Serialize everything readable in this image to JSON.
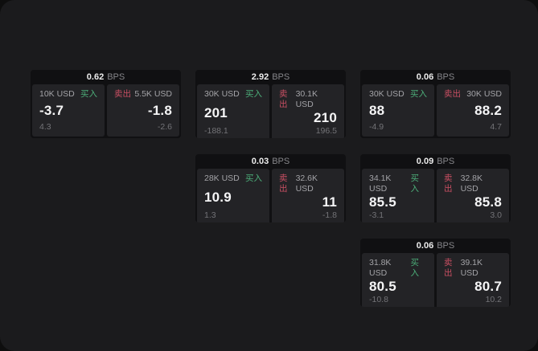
{
  "labels": {
    "bps_unit": "BPS",
    "buy": "买入",
    "sell": "卖出"
  },
  "colors": {
    "buy_green": "#4cae79",
    "sell_red": "#c94f63",
    "page_background": "#1b1b1d",
    "card_background": "#101012",
    "panel_background": "#232326"
  },
  "cards": [
    {
      "row": 1,
      "col": 1,
      "bps": "0.62",
      "buy": {
        "amount": "10K USD",
        "value": "-3.7",
        "sub": "4.3"
      },
      "sell": {
        "amount": "5.5K USD",
        "value": "-1.8",
        "sub": "-2.6"
      }
    },
    {
      "row": 1,
      "col": 2,
      "bps": "2.92",
      "buy": {
        "amount": "30K USD",
        "value": "201",
        "sub": "-188.1"
      },
      "sell": {
        "amount": "30.1K USD",
        "value": "210",
        "sub": "196.5"
      }
    },
    {
      "row": 1,
      "col": 3,
      "bps": "0.06",
      "buy": {
        "amount": "30K USD",
        "value": "88",
        "sub": "-4.9"
      },
      "sell": {
        "amount": "30K USD",
        "value": "88.2",
        "sub": "4.7"
      }
    },
    {
      "row": 2,
      "col": 2,
      "bps": "0.03",
      "buy": {
        "amount": "28K USD",
        "value": "10.9",
        "sub": "1.3"
      },
      "sell": {
        "amount": "32.6K USD",
        "value": "11",
        "sub": "-1.8"
      }
    },
    {
      "row": 2,
      "col": 3,
      "bps": "0.09",
      "buy": {
        "amount": "34.1K USD",
        "value": "85.5",
        "sub": "-3.1"
      },
      "sell": {
        "amount": "32.8K USD",
        "value": "85.8",
        "sub": "3.0"
      }
    },
    {
      "row": 3,
      "col": 3,
      "bps": "0.06",
      "buy": {
        "amount": "31.8K USD",
        "value": "80.5",
        "sub": "-10.8"
      },
      "sell": {
        "amount": "39.1K USD",
        "value": "80.7",
        "sub": "10.2"
      }
    }
  ]
}
